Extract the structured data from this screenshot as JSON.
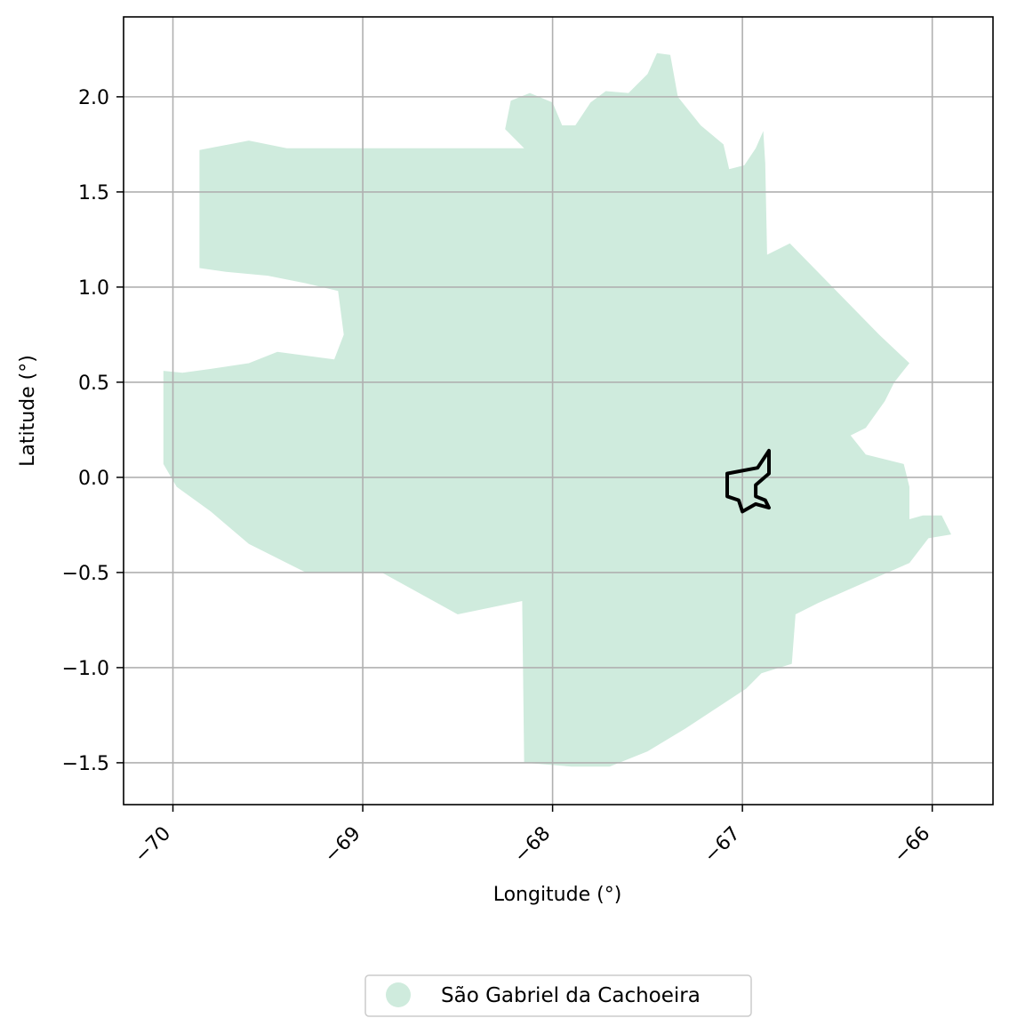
{
  "map": {
    "xlabel": "Longitude (°)",
    "ylabel": "Latitude (°)",
    "xlim": [
      -70.26,
      -65.68
    ],
    "ylim": [
      -1.72,
      2.42
    ],
    "grid": true,
    "x_ticks": [
      {
        "value": -70,
        "label": "−70"
      },
      {
        "value": -69,
        "label": "−69"
      },
      {
        "value": -68,
        "label": "−68"
      },
      {
        "value": -67,
        "label": "−67"
      },
      {
        "value": -66,
        "label": "−66"
      }
    ],
    "y_ticks": [
      {
        "value": 2.0,
        "label": "2.0"
      },
      {
        "value": 1.5,
        "label": "1.5"
      },
      {
        "value": 1.0,
        "label": "1.0"
      },
      {
        "value": 0.5,
        "label": "0.5"
      },
      {
        "value": 0.0,
        "label": "0.0"
      },
      {
        "value": -0.5,
        "label": "−0.5"
      },
      {
        "value": -1.0,
        "label": "−1.0"
      },
      {
        "value": -1.5,
        "label": "−1.5"
      }
    ],
    "region": {
      "color": "#cfebdd",
      "coordinates": [
        [
          -68.15,
          1.73
        ],
        [
          -68.25,
          1.83
        ],
        [
          -68.22,
          1.98
        ],
        [
          -68.12,
          2.02
        ],
        [
          -68.0,
          1.97
        ],
        [
          -67.95,
          1.85
        ],
        [
          -67.88,
          1.85
        ],
        [
          -67.8,
          1.97
        ],
        [
          -67.72,
          2.03
        ],
        [
          -67.6,
          2.02
        ],
        [
          -67.5,
          2.12
        ],
        [
          -67.45,
          2.23
        ],
        [
          -67.38,
          2.22
        ],
        [
          -67.34,
          2.0
        ],
        [
          -67.22,
          1.85
        ],
        [
          -67.1,
          1.75
        ],
        [
          -67.07,
          1.62
        ],
        [
          -66.99,
          1.64
        ],
        [
          -66.93,
          1.73
        ],
        [
          -66.89,
          1.82
        ],
        [
          -66.88,
          1.65
        ],
        [
          -66.87,
          1.17
        ],
        [
          -66.75,
          1.23
        ],
        [
          -66.28,
          0.75
        ],
        [
          -66.12,
          0.6
        ],
        [
          -66.2,
          0.5
        ],
        [
          -66.25,
          0.4
        ],
        [
          -66.35,
          0.26
        ],
        [
          -66.43,
          0.22
        ],
        [
          -66.35,
          0.12
        ],
        [
          -66.15,
          0.07
        ],
        [
          -66.12,
          -0.05
        ],
        [
          -66.12,
          -0.22
        ],
        [
          -66.05,
          -0.2
        ],
        [
          -65.95,
          -0.2
        ],
        [
          -65.9,
          -0.3
        ],
        [
          -66.02,
          -0.32
        ],
        [
          -66.12,
          -0.45
        ],
        [
          -66.35,
          -0.55
        ],
        [
          -66.6,
          -0.66
        ],
        [
          -66.72,
          -0.72
        ],
        [
          -66.74,
          -0.98
        ],
        [
          -66.9,
          -1.03
        ],
        [
          -66.98,
          -1.11
        ],
        [
          -67.3,
          -1.32
        ],
        [
          -67.5,
          -1.44
        ],
        [
          -67.7,
          -1.52
        ],
        [
          -67.9,
          -1.52
        ],
        [
          -68.15,
          -1.5
        ],
        [
          -68.16,
          -0.65
        ],
        [
          -68.5,
          -0.72
        ],
        [
          -68.9,
          -0.5
        ],
        [
          -69.3,
          -0.5
        ],
        [
          -69.6,
          -0.35
        ],
        [
          -69.8,
          -0.18
        ],
        [
          -69.98,
          -0.05
        ],
        [
          -70.05,
          0.07
        ],
        [
          -70.05,
          0.56
        ],
        [
          -69.95,
          0.55
        ],
        [
          -69.8,
          0.57
        ],
        [
          -69.6,
          0.6
        ],
        [
          -69.45,
          0.66
        ],
        [
          -69.15,
          0.62
        ],
        [
          -69.1,
          0.75
        ],
        [
          -69.13,
          0.98
        ],
        [
          -69.3,
          1.02
        ],
        [
          -69.5,
          1.06
        ],
        [
          -69.72,
          1.08
        ],
        [
          -69.86,
          1.1
        ],
        [
          -69.86,
          1.72
        ],
        [
          -69.6,
          1.77
        ],
        [
          -69.4,
          1.73
        ],
        [
          -68.15,
          1.73
        ]
      ]
    },
    "highlight": {
      "color": "#000000",
      "coordinates": [
        [
          -67.08,
          0.02
        ],
        [
          -66.92,
          0.05
        ],
        [
          -66.86,
          0.14
        ],
        [
          -66.86,
          0.02
        ],
        [
          -66.93,
          -0.04
        ],
        [
          -66.93,
          -0.1
        ],
        [
          -66.88,
          -0.12
        ],
        [
          -66.86,
          -0.16
        ],
        [
          -66.93,
          -0.14
        ],
        [
          -67.0,
          -0.18
        ],
        [
          -67.02,
          -0.12
        ],
        [
          -67.08,
          -0.1
        ],
        [
          -67.08,
          0.02
        ]
      ]
    }
  },
  "legend": {
    "position": "bottom-center",
    "entries": [
      {
        "label": "São Gabriel da Cachoeira",
        "color": "#cfebdd"
      }
    ]
  }
}
